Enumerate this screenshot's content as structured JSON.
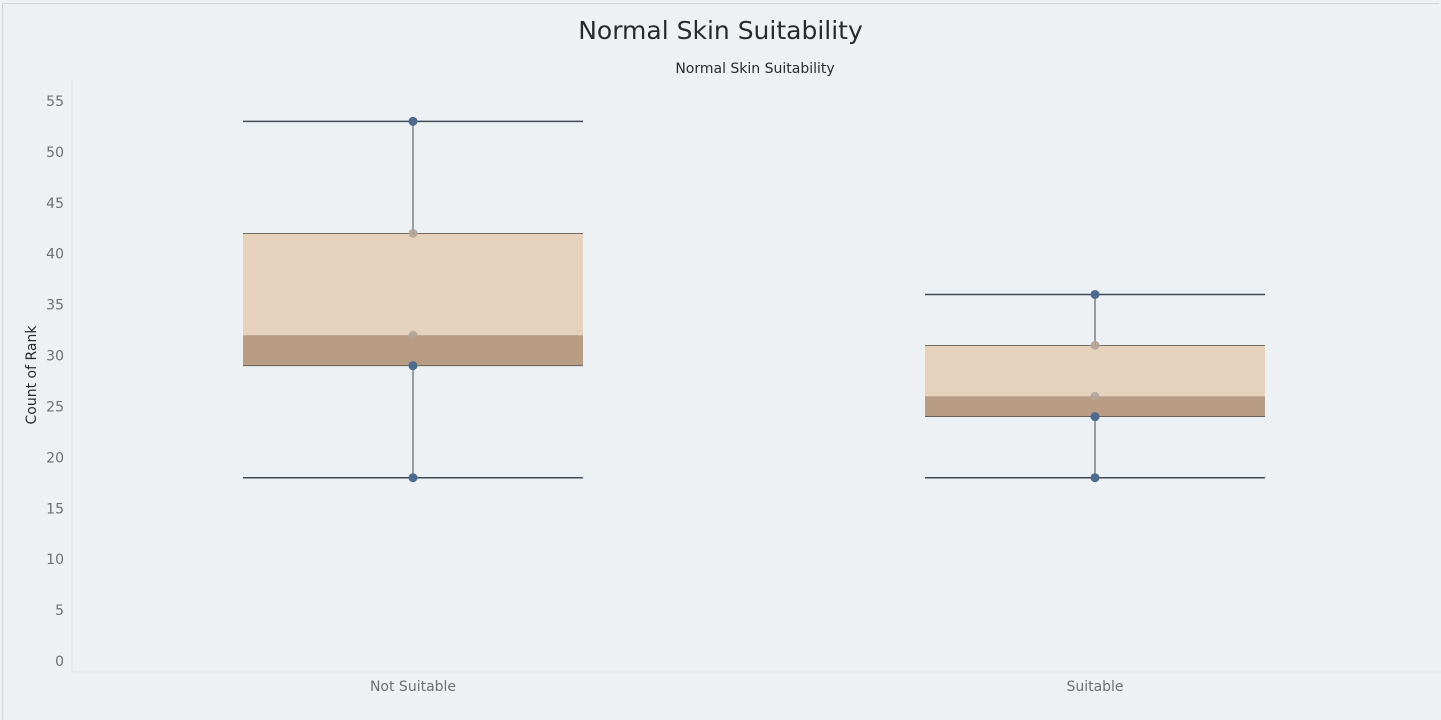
{
  "title": "Normal Skin Suitability",
  "subtitle": "Normal Skin Suitability",
  "chart_data": {
    "type": "box",
    "title": "Normal Skin Suitability",
    "subtitle": "Normal Skin Suitability",
    "xlabel": "",
    "ylabel": "Count of Rank",
    "ylim": [
      0,
      55
    ],
    "yticks": [
      0,
      5,
      10,
      15,
      20,
      25,
      30,
      35,
      40,
      45,
      50,
      55
    ],
    "categories": [
      "Not Suitable",
      "Suitable"
    ],
    "boxes": [
      {
        "category": "Not Suitable",
        "min": 18,
        "q1": 29,
        "median": 32,
        "q3": 42,
        "max": 53,
        "points": [
          53,
          42,
          32,
          29,
          18
        ]
      },
      {
        "category": "Suitable",
        "min": 18,
        "q1": 24,
        "median": 26,
        "q3": 31,
        "max": 36,
        "points": [
          36,
          31,
          26,
          24,
          18
        ]
      }
    ],
    "grid": false,
    "colors": {
      "upper_box": "#e6d1bd",
      "lower_box": "#b89c84",
      "whisker": "#3f4a57",
      "point": "#4e6a8e"
    }
  }
}
